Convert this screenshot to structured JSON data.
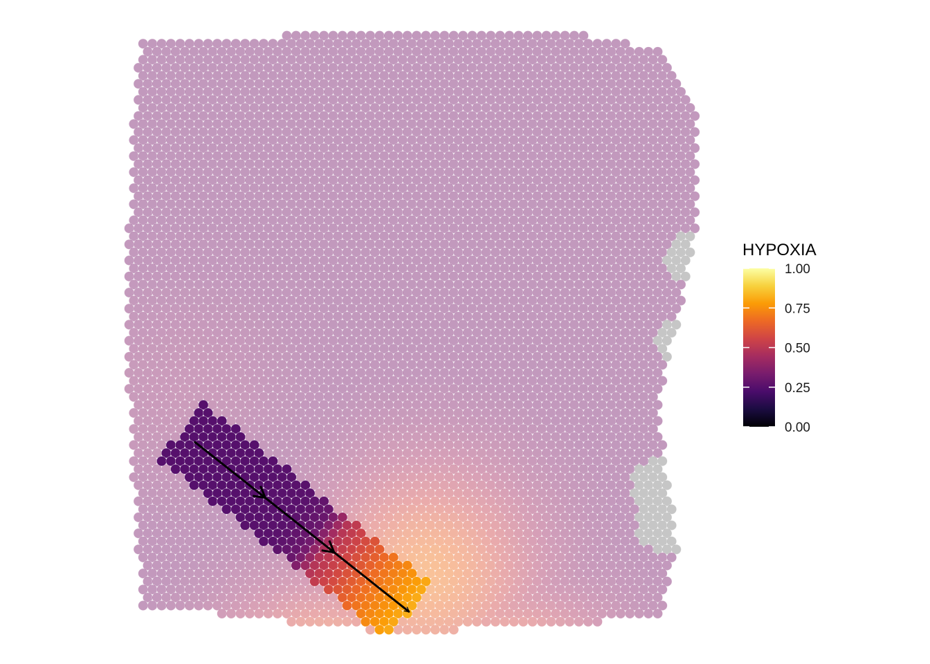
{
  "chart_data": {
    "type": "scatter",
    "subtype": "spatial-spot-map",
    "title": "",
    "xlabel": "",
    "ylabel": "",
    "grid": false,
    "axes": false,
    "background_spot_alpha": 0.45,
    "legend": {
      "title": "HYPOXIA",
      "placement": "right",
      "range": [
        0,
        1
      ],
      "ticks": [
        0,
        0.25,
        0.5,
        0.75,
        1
      ],
      "tick_labels": [
        "0.00",
        "0.25",
        "0.50",
        "0.75",
        "1.00"
      ],
      "colormap": "inferno",
      "color_stops": [
        "#000004",
        "#1b0c41",
        "#4a0c6b",
        "#781c6d",
        "#a52c60",
        "#cf4446",
        "#ed6925",
        "#fb9b06",
        "#f7d13d",
        "#fcffa4"
      ]
    },
    "na_color": "#808080",
    "selected_region": {
      "description": "highlighted band of spots along the trajectory, shown at full opacity",
      "trajectory": {
        "start": [
          0.12,
          0.68
        ],
        "end": [
          0.49,
          0.96
        ]
      },
      "values_along_trajectory": [
        {
          "position": 0.0,
          "value": 0.25
        },
        {
          "position": 0.2,
          "value": 0.25
        },
        {
          "position": 0.45,
          "value": 0.26
        },
        {
          "position": 0.55,
          "value": 0.3
        },
        {
          "position": 0.62,
          "value": 0.48
        },
        {
          "position": 0.72,
          "value": 0.58
        },
        {
          "position": 0.82,
          "value": 0.68
        },
        {
          "position": 1.0,
          "value": 0.82
        }
      ]
    },
    "background_hotspots": [
      {
        "center": [
          0.35,
          1.14
        ],
        "value": 0.95
      },
      {
        "center": [
          0.65,
          1.14
        ],
        "value": 0.88
      },
      {
        "center": [
          0.52,
          0.9
        ],
        "value": 0.7
      },
      {
        "center": [
          0.1,
          0.61
        ],
        "value": 0.38
      }
    ],
    "background_base_value": 0.33,
    "missing_spots": [
      [
        0.98,
        0.38
      ],
      [
        0.96,
        0.52
      ],
      [
        0.92,
        0.75
      ],
      [
        0.93,
        0.82
      ]
    ]
  },
  "arrow": {
    "color": "#000000"
  }
}
